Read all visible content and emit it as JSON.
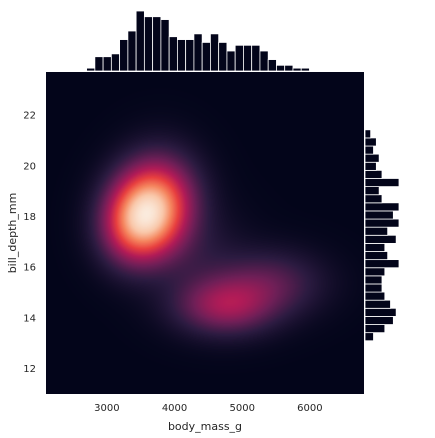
{
  "chart_data": {
    "type": "heatmap",
    "subtype": "jointplot-kde-with-marginal-histograms",
    "title": "",
    "xlabel": "body_mass_g",
    "ylabel": "bill_depth_mm",
    "xlim": [
      2100,
      6800
    ],
    "ylim": [
      11.0,
      23.7
    ],
    "x_ticks": [
      3000,
      4000,
      5000,
      6000
    ],
    "x_tick_labels": [
      "3000",
      "4000",
      "5000",
      "6000"
    ],
    "y_ticks": [
      12,
      14,
      16,
      18,
      20,
      22
    ],
    "y_tick_labels": [
      "12",
      "14",
      "16",
      "18",
      "20",
      "22"
    ],
    "grid": false,
    "colormap": [
      "#03051a",
      "#2c1b41",
      "#6e1f57",
      "#b11b57",
      "#e83f3f",
      "#f5855e",
      "#f9c7a9",
      "#faebdd"
    ],
    "background_color": "#03051a",
    "density_peaks": [
      {
        "x": 3550,
        "y": 18.1,
        "weight": 1.0,
        "sx": 360,
        "sy": 1.1
      },
      {
        "x": 3800,
        "y": 18.8,
        "weight": 0.55,
        "sx": 380,
        "sy": 1.2
      },
      {
        "x": 3350,
        "y": 17.4,
        "weight": 0.35,
        "sx": 330,
        "sy": 1.0
      },
      {
        "x": 4750,
        "y": 14.5,
        "weight": 0.5,
        "sx": 480,
        "sy": 0.75
      },
      {
        "x": 5400,
        "y": 15.4,
        "weight": 0.28,
        "sx": 520,
        "sy": 0.85
      },
      {
        "x": 4300,
        "y": 16.4,
        "weight": 0.12,
        "sx": 500,
        "sy": 1.3
      }
    ],
    "x_marginal": {
      "bin_edges_start": 2700,
      "bin_width": 122,
      "counts": [
        1,
        5,
        5,
        6,
        11,
        14,
        21,
        19,
        19,
        18,
        12,
        11,
        11,
        13,
        10,
        13,
        10,
        7,
        9,
        9,
        9,
        7,
        4,
        2,
        2,
        1,
        1
      ]
    },
    "y_marginal": {
      "bin_edges_start": 13.1,
      "bin_width": 0.32,
      "counts": [
        3,
        7,
        10,
        11,
        9,
        7,
        6,
        6,
        7,
        12,
        8,
        7,
        11,
        8,
        12,
        10,
        12,
        6,
        5,
        12,
        6,
        4,
        5,
        3,
        4,
        2
      ]
    }
  }
}
